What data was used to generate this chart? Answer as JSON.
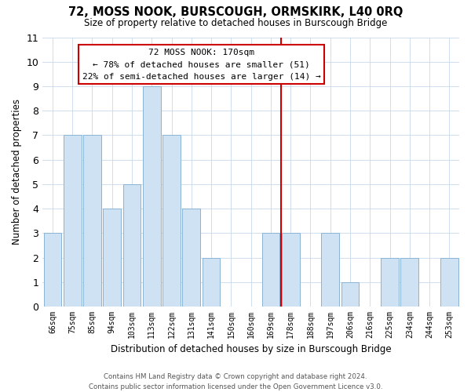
{
  "title": "72, MOSS NOOK, BURSCOUGH, ORMSKIRK, L40 0RQ",
  "subtitle": "Size of property relative to detached houses in Burscough Bridge",
  "xlabel": "Distribution of detached houses by size in Burscough Bridge",
  "ylabel": "Number of detached properties",
  "bar_labels": [
    "66sqm",
    "75sqm",
    "85sqm",
    "94sqm",
    "103sqm",
    "113sqm",
    "122sqm",
    "131sqm",
    "141sqm",
    "150sqm",
    "160sqm",
    "169sqm",
    "178sqm",
    "188sqm",
    "197sqm",
    "206sqm",
    "216sqm",
    "225sqm",
    "234sqm",
    "244sqm",
    "253sqm"
  ],
  "bar_values": [
    3,
    7,
    7,
    4,
    5,
    9,
    7,
    4,
    2,
    0,
    0,
    3,
    3,
    0,
    3,
    1,
    0,
    2,
    2,
    0,
    2
  ],
  "bar_color": "#cfe2f3",
  "bar_edge_color": "#8ab4d4",
  "reference_line_x": 11.5,
  "reference_line_color": "#cc0000",
  "ylim": [
    0,
    11
  ],
  "yticks": [
    0,
    1,
    2,
    3,
    4,
    5,
    6,
    7,
    8,
    9,
    10,
    11
  ],
  "annotation_title": "72 MOSS NOOK: 170sqm",
  "annotation_line1": "← 78% of detached houses are smaller (51)",
  "annotation_line2": "22% of semi-detached houses are larger (14) →",
  "annotation_box_color": "#ffffff",
  "annotation_box_edge": "#cc0000",
  "footer_line1": "Contains HM Land Registry data © Crown copyright and database right 2024.",
  "footer_line2": "Contains public sector information licensed under the Open Government Licence v3.0.",
  "background_color": "#ffffff",
  "grid_color": "#c8d8ea"
}
